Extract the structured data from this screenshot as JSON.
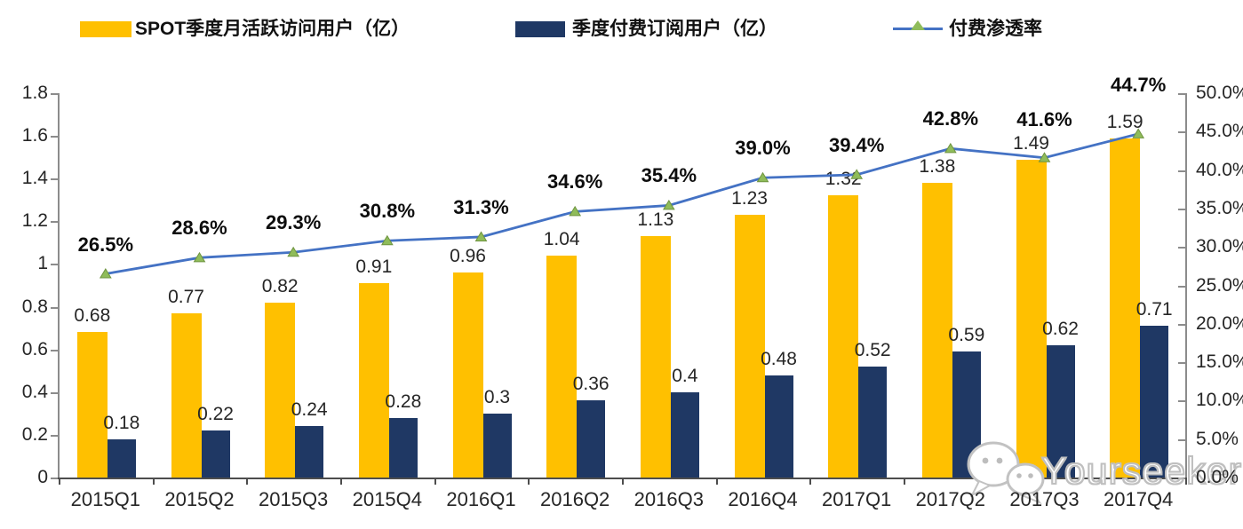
{
  "legend": {
    "items": [
      {
        "label": "SPOT季度月活跃访问用户（亿）",
        "type": "bar",
        "swatch_color": "#FFC000"
      },
      {
        "label": "季度付费订阅用户（亿）",
        "type": "bar",
        "swatch_color": "#1F3864"
      },
      {
        "label": "付费渗透率",
        "type": "line",
        "line_color": "#4472C4",
        "marker_color": "#8FBC5A"
      }
    ]
  },
  "chart_data": {
    "type": "combo-bar-line",
    "title": "",
    "xlabel": "",
    "ylabel_left": "",
    "ylabel_right": "",
    "grid": false,
    "legend_position": "top",
    "categories": [
      "2015Q1",
      "2015Q2",
      "2015Q3",
      "2015Q4",
      "2016Q1",
      "2016Q2",
      "2016Q3",
      "2016Q4",
      "2017Q1",
      "2017Q2",
      "2017Q3",
      "2017Q4"
    ],
    "series": [
      {
        "id": "mau",
        "name": "SPOT季度月活跃访问用户（亿）",
        "type": "bar",
        "axis": "left",
        "color": "#FFC000",
        "values": [
          0.68,
          0.77,
          0.82,
          0.91,
          0.96,
          1.04,
          1.13,
          1.23,
          1.32,
          1.38,
          1.49,
          1.59
        ],
        "labels": [
          "0.68",
          "0.77",
          "0.82",
          "0.91",
          "0.96",
          "1.04",
          "1.13",
          "1.23",
          "1.32",
          "1.38",
          "1.49",
          "1.59"
        ]
      },
      {
        "id": "subs",
        "name": "季度付费订阅用户（亿）",
        "type": "bar",
        "axis": "left",
        "color": "#1F3864",
        "values": [
          0.18,
          0.22,
          0.24,
          0.28,
          0.3,
          0.36,
          0.4,
          0.48,
          0.52,
          0.59,
          0.62,
          0.71
        ],
        "labels": [
          "0.18",
          "0.22",
          "0.24",
          "0.28",
          "0.3",
          "0.36",
          "0.4",
          "0.48",
          "0.52",
          "0.59",
          "0.62",
          "0.71"
        ]
      },
      {
        "id": "penetration",
        "name": "付费渗透率",
        "type": "line",
        "axis": "right",
        "color": "#4472C4",
        "marker": "triangle",
        "marker_color": "#8FBC5A",
        "marker_edge_color": "#6f9440",
        "values": [
          26.5,
          28.6,
          29.3,
          30.8,
          31.3,
          34.6,
          35.4,
          39.0,
          39.4,
          42.8,
          41.6,
          44.7
        ],
        "labels": [
          "26.5%",
          "28.6%",
          "29.3%",
          "30.8%",
          "31.3%",
          "34.6%",
          "35.4%",
          "39.0%",
          "39.4%",
          "42.8%",
          "41.6%",
          "44.7%"
        ]
      }
    ],
    "left_axis": {
      "min": 0,
      "max": 1.8,
      "step": 0.2,
      "ticks": [
        "0",
        "0.2",
        "0.4",
        "0.6",
        "0.8",
        "1",
        "1.2",
        "1.4",
        "1.6",
        "1.8"
      ]
    },
    "right_axis": {
      "min": 0,
      "max": 50,
      "step": 5,
      "ticks": [
        "0.0%",
        "5.0%",
        "10.0%",
        "15.0%",
        "20.0%",
        "25.0%",
        "30.0%",
        "35.0%",
        "40.0%",
        "45.0%",
        "50.0%"
      ]
    }
  },
  "watermark": {
    "text": "Yourseeker",
    "icon": "wechat-chat-bubbles"
  }
}
